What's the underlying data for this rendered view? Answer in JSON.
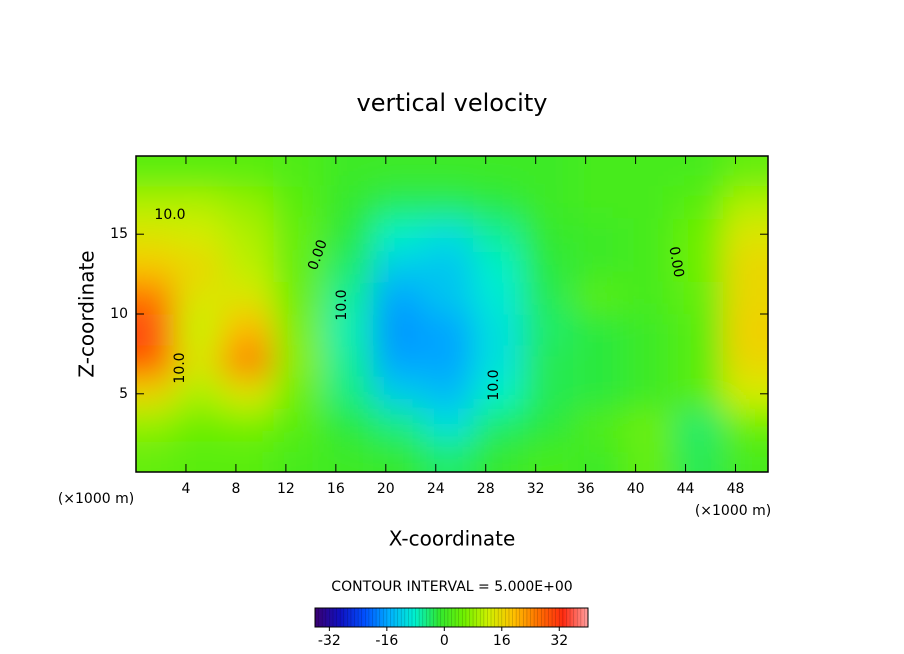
{
  "chart_data": {
    "type": "contour",
    "title": "vertical velocity",
    "x_label": "X-coordinate",
    "y_label": "Z-coordinate",
    "x_unit_label": "(×1000 m)",
    "y_unit_label": "(×1000 m)",
    "contour_interval_label": "CONTOUR INTERVAL = 5.000E+00",
    "xlim": [
      0,
      50.6
    ],
    "ylim": [
      0.1,
      19.9
    ],
    "xticks": [
      4,
      8,
      12,
      16,
      20,
      24,
      28,
      32,
      36,
      40,
      44,
      48
    ],
    "yticks": [
      5,
      10,
      15
    ],
    "x": [
      1,
      5,
      9,
      13,
      17,
      21,
      25,
      29,
      33,
      37,
      41,
      45,
      49
    ],
    "y": [
      19,
      17,
      15,
      13,
      11,
      9,
      7,
      5,
      3,
      1
    ],
    "z": [
      [
        3,
        3,
        3,
        2,
        0,
        0,
        0,
        0,
        0,
        1,
        1,
        1,
        4
      ],
      [
        10,
        10,
        8,
        3,
        -1,
        -3,
        -3,
        -2,
        0,
        1,
        1,
        3,
        10
      ],
      [
        14,
        13,
        10,
        4,
        -2,
        -8,
        -10,
        -6,
        -1,
        0,
        1,
        5,
        14
      ],
      [
        18,
        16,
        11,
        4,
        -4,
        -12,
        -13,
        -8,
        -2,
        0,
        1,
        5,
        16
      ],
      [
        26,
        14,
        14,
        5,
        -6,
        -16,
        -13,
        -9,
        -3,
        3,
        1,
        4,
        16
      ],
      [
        30,
        12,
        20,
        6,
        -7,
        -17,
        -16,
        -10,
        -4,
        -2,
        0,
        3,
        17
      ],
      [
        28,
        14,
        25,
        7,
        -6,
        -16,
        -16,
        -10,
        -3,
        -2,
        0,
        3,
        16
      ],
      [
        16,
        10,
        14,
        5,
        -5,
        -12,
        -14,
        -8,
        -3,
        -2,
        0,
        3,
        13
      ],
      [
        8,
        5,
        6,
        3,
        -2,
        -5,
        -10,
        -4,
        -2,
        2,
        5,
        -4,
        5
      ],
      [
        4,
        3,
        3,
        1,
        0,
        -1,
        -4,
        -1,
        1,
        0,
        4,
        -3,
        1
      ]
    ],
    "contour_labels": [
      "10.0",
      "0.00",
      "10.0",
      "10.0",
      "10.0",
      "0.00"
    ],
    "clim": [
      -36,
      40
    ],
    "colorbar_ticks": [
      -32,
      -16,
      0,
      16,
      32
    ],
    "colormap": [
      "#3a0070",
      "#1010c0",
      "#0050ff",
      "#00b0ff",
      "#00f0d0",
      "#30e830",
      "#70f000",
      "#d0f000",
      "#ffc000",
      "#ff7000",
      "#ff2a10",
      "#ffa0a0"
    ]
  }
}
